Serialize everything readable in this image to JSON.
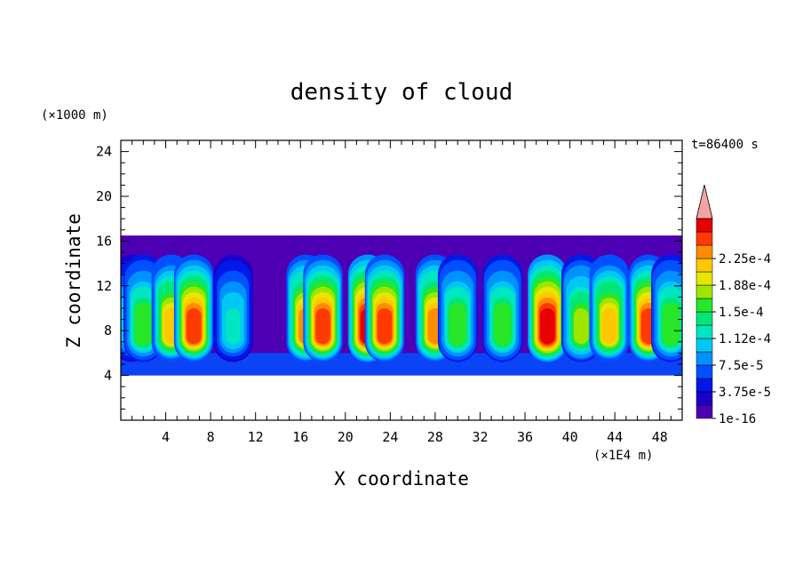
{
  "chart_data": {
    "type": "heatmap",
    "title": "density of cloud",
    "xlabel": "X coordinate",
    "ylabel": "Z coordinate",
    "x_unit": "(×1E4 m)",
    "y_unit": "(×1000 m)",
    "time_label": "t=86400 s",
    "xlim": [
      0,
      50
    ],
    "ylim": [
      0,
      25
    ],
    "x_ticks": [
      4,
      8,
      12,
      16,
      20,
      24,
      28,
      32,
      36,
      40,
      44,
      48
    ],
    "x_tick_labels": [
      "4",
      "8",
      "12",
      "16",
      "20",
      "24",
      "28",
      "32",
      "36",
      "40",
      "44",
      "48"
    ],
    "y_ticks": [
      4,
      8,
      12,
      16,
      20,
      24
    ],
    "y_tick_labels": [
      "4",
      "8",
      "12",
      "16",
      "20",
      "24"
    ],
    "cloud_layer": {
      "base_km": 4,
      "top_km": 16.5
    },
    "colorbar": {
      "labels": [
        "1e-16",
        "3.75e-5",
        "7.5e-5",
        "1.12e-4",
        "1.5e-4",
        "1.88e-4",
        "2.25e-4"
      ],
      "level_values": [
        0,
        1.875e-05,
        3.75e-05,
        5.625e-05,
        7.5e-05,
        9.375e-05,
        0.0001125,
        0.00013125,
        0.00015,
        0.00016875,
        0.0001875,
        0.00020625,
        0.000225,
        0.00024375
      ],
      "colors": [
        "#4d00b3",
        "#1a00c8",
        "#0018e8",
        "#0050ff",
        "#0092ff",
        "#00c8f5",
        "#00e6c0",
        "#00e678",
        "#28e628",
        "#9ee600",
        "#e6e600",
        "#ffc800",
        "#ff8c00",
        "#ff3a00",
        "#e60000"
      ],
      "extend_color": "#f4a3a3"
    },
    "cells": [
      {
        "x": 1,
        "values": [
          0.8,
          0.9,
          1.0,
          0.6,
          0.5
        ]
      },
      {
        "x": 2,
        "values": [
          0.8,
          1.2,
          1.4,
          0.9,
          0.7
        ]
      },
      {
        "x": 4.5,
        "values": [
          1.4,
          1.6,
          1.8,
          1.2,
          0.9
        ]
      },
      {
        "x": 6.5,
        "values": [
          1.5,
          2.1,
          2.3,
          2.0,
          1.4
        ]
      },
      {
        "x": 10,
        "values": [
          0.9,
          1.0,
          0.6,
          0.5,
          0.4
        ]
      },
      {
        "x": 16.5,
        "values": [
          1.5,
          1.9,
          2.0,
          1.7,
          1.3
        ]
      },
      {
        "x": 18,
        "values": [
          1.6,
          2.1,
          2.2,
          2.0,
          1.6
        ]
      },
      {
        "x": 22,
        "values": [
          1.7,
          2.3,
          2.4,
          2.4,
          2.2
        ]
      },
      {
        "x": 23.5,
        "values": [
          1.4,
          1.9,
          2.2,
          2.0,
          1.5
        ]
      },
      {
        "x": 28,
        "values": [
          1.4,
          1.9,
          2.0,
          1.4,
          0.9
        ]
      },
      {
        "x": 30,
        "values": [
          1.1,
          1.4,
          1.3,
          1.0,
          0.7
        ]
      },
      {
        "x": 34,
        "values": [
          1.2,
          1.4,
          1.1,
          0.8,
          0.6
        ]
      },
      {
        "x": 38,
        "values": [
          1.6,
          2.2,
          2.4,
          2.4,
          2.2
        ]
      },
      {
        "x": 41,
        "values": [
          1.2,
          1.5,
          1.3,
          1.0,
          0.7
        ]
      },
      {
        "x": 43.5,
        "values": [
          1.4,
          1.8,
          1.7,
          1.2,
          0.8
        ]
      },
      {
        "x": 47,
        "values": [
          1.4,
          2.0,
          2.2,
          1.9,
          1.3
        ]
      },
      {
        "x": 49,
        "values": [
          1.1,
          1.4,
          1.2,
          0.9,
          0.6
        ]
      }
    ]
  }
}
